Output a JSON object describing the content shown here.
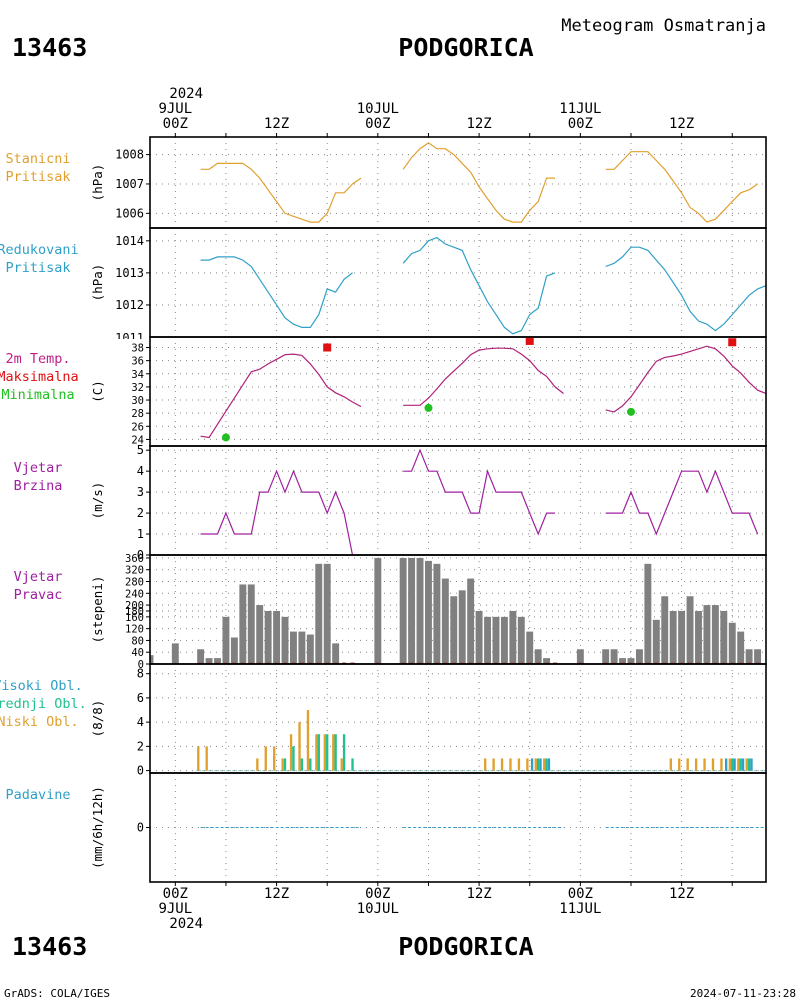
{
  "header": {
    "station_id": "13463",
    "station_name": "PODGORICA",
    "product": "Meteogram Osmatranja",
    "footer_left": "GrADS: COLA/IGES",
    "footer_right": "2024-07-11-23:28"
  },
  "time_axis": {
    "year": "2024",
    "top_labels": [
      {
        "t": 0,
        "lines": [
          "2024",
          "9JUL",
          "00Z"
        ]
      },
      {
        "t": 12,
        "lines": [
          "12Z"
        ]
      },
      {
        "t": 24,
        "lines": [
          "10JUL",
          "00Z"
        ]
      },
      {
        "t": 36,
        "lines": [
          "12Z"
        ]
      },
      {
        "t": 48,
        "lines": [
          "11JUL",
          "00Z"
        ]
      },
      {
        "t": 60,
        "lines": [
          "12Z"
        ]
      }
    ],
    "bottom_labels": [
      {
        "t": 0,
        "lines": [
          "00Z",
          "9JUL",
          "2024"
        ]
      },
      {
        "t": 12,
        "lines": [
          "12Z"
        ]
      },
      {
        "t": 24,
        "lines": [
          "00Z",
          "10JUL"
        ]
      },
      {
        "t": 36,
        "lines": [
          "12Z"
        ]
      },
      {
        "t": 48,
        "lines": [
          "00Z",
          "11JUL"
        ]
      },
      {
        "t": 60,
        "lines": [
          "12Z"
        ]
      }
    ],
    "range_hours": [
      -3,
      70
    ]
  },
  "chart_data": [
    {
      "type": "line",
      "panel": "stanicni-pritisak",
      "label_lines": [
        "Stanicni",
        "Pritisak"
      ],
      "label_color": "#e0a030",
      "line_color": "#e0a030",
      "ylabel": "(hPa)",
      "ylim": [
        1005.5,
        1008.6
      ],
      "yticks": [
        1006,
        1007,
        1008
      ],
      "segments": [
        {
          "x": [
            3,
            4,
            5,
            6,
            7,
            8,
            9,
            10,
            11,
            12,
            13,
            14,
            15,
            16,
            17,
            18,
            19,
            20,
            21,
            22
          ],
          "y": [
            1007.5,
            1007.5,
            1007.7,
            1007.7,
            1007.7,
            1007.7,
            1007.5,
            1007.2,
            1006.8,
            1006.4,
            1006.0,
            1005.9,
            1005.8,
            1005.7,
            1005.7,
            1006.0,
            1006.7,
            1006.7,
            1007.0,
            1007.2
          ]
        },
        {
          "x": [
            27,
            28,
            29,
            30,
            31,
            32,
            33,
            34,
            35,
            36,
            37,
            38,
            39,
            40,
            41,
            42,
            43,
            44,
            45,
            46
          ],
          "y": [
            1007.5,
            1007.9,
            1008.2,
            1008.4,
            1008.2,
            1008.2,
            1008.0,
            1007.7,
            1007.4,
            1006.9,
            1006.5,
            1006.1,
            1005.8,
            1005.7,
            1005.7,
            1006.1,
            1006.4,
            1007.2,
            1007.2,
            null
          ]
        },
        {
          "x": [
            51,
            52,
            53,
            54,
            55,
            56,
            57,
            58,
            59,
            60,
            61,
            62,
            63,
            64,
            65,
            66,
            67,
            68,
            69,
            70
          ],
          "y": [
            1007.5,
            1007.5,
            1007.8,
            1008.1,
            1008.1,
            1008.1,
            1007.8,
            1007.5,
            1007.1,
            1006.7,
            1006.2,
            1006.0,
            1005.7,
            1005.8,
            1006.1,
            1006.4,
            1006.7,
            1006.8,
            1007.0,
            null
          ]
        }
      ]
    },
    {
      "type": "line",
      "panel": "redukovani-pritisak",
      "label_lines": [
        "Redukovani",
        "Pritisak"
      ],
      "label_color": "#30a0c8",
      "line_color": "#30a0c8",
      "ylabel": "(hPa)",
      "ylim": [
        1011.0,
        1014.4
      ],
      "yticks": [
        1012,
        1013,
        1014
      ],
      "yticks_clipped": [
        1011
      ],
      "segments": [
        {
          "x": [
            3,
            4,
            5,
            6,
            7,
            8,
            9,
            10,
            11,
            12,
            13,
            14,
            15,
            16,
            17,
            18,
            19,
            20,
            21,
            22
          ],
          "y": [
            1013.4,
            1013.4,
            1013.5,
            1013.5,
            1013.5,
            1013.4,
            1013.2,
            1012.8,
            1012.4,
            1012.0,
            1011.6,
            1011.4,
            1011.3,
            1011.3,
            1011.7,
            1012.5,
            1012.4,
            1012.8,
            1013.0,
            null
          ]
        },
        {
          "x": [
            27,
            28,
            29,
            30,
            31,
            32,
            33,
            34,
            35,
            36,
            37,
            38,
            39,
            40,
            41,
            42,
            43,
            44,
            45,
            46
          ],
          "y": [
            1013.3,
            1013.6,
            1013.7,
            1014.0,
            1014.1,
            1013.9,
            1013.8,
            1013.7,
            1013.1,
            1012.6,
            1012.1,
            1011.7,
            1011.3,
            1011.1,
            1011.2,
            1011.7,
            1011.9,
            1012.9,
            1013.0,
            null
          ]
        },
        {
          "x": [
            51,
            52,
            53,
            54,
            55,
            56,
            57,
            58,
            59,
            60,
            61,
            62,
            63,
            64,
            65,
            66,
            67,
            68,
            69,
            70
          ],
          "y": [
            1013.2,
            1013.3,
            1013.5,
            1013.8,
            1013.8,
            1013.7,
            1013.4,
            1013.1,
            1012.7,
            1012.3,
            1011.8,
            1011.5,
            1011.4,
            1011.2,
            1011.4,
            1011.7,
            1012.0,
            1012.3,
            1012.5,
            1012.6
          ]
        }
      ]
    },
    {
      "type": "line",
      "panel": "temperatura",
      "label_lines": [
        "2m Temp.",
        "Maksimalna",
        "Minimalna"
      ],
      "label_colors": [
        "#c0208a",
        "#e01010",
        "#20c020"
      ],
      "line_color": "#b0207a",
      "ylabel": "(C)",
      "ylim": [
        23.0,
        39.6
      ],
      "yticks": [
        24,
        26,
        28,
        30,
        32,
        34,
        36,
        38
      ],
      "segments": [
        {
          "x": [
            3,
            4,
            5,
            6,
            7,
            8,
            9,
            10,
            11,
            12,
            13,
            14,
            15,
            16,
            17,
            18,
            19,
            20,
            21,
            22
          ],
          "y": [
            24.5,
            24.3,
            26.3,
            28.3,
            30.3,
            32.3,
            34.3,
            34.7,
            35.5,
            36.2,
            36.9,
            37.0,
            36.8,
            35.5,
            33.9,
            32.0,
            31.1,
            30.5,
            29.7,
            29.0
          ]
        },
        {
          "x": [
            27,
            28,
            29,
            30,
            31,
            32,
            33,
            34,
            35,
            36,
            37,
            38,
            39,
            40,
            41,
            42,
            43,
            44,
            45,
            46
          ],
          "y": [
            29.2,
            29.2,
            29.2,
            30.3,
            31.7,
            33.2,
            34.4,
            35.6,
            36.9,
            37.6,
            37.8,
            37.9,
            37.9,
            37.8,
            37.0,
            36.0,
            34.5,
            33.6,
            32.0,
            31.0
          ]
        },
        {
          "x": [
            51,
            52,
            53,
            54,
            55,
            56,
            57,
            58,
            59,
            60,
            61,
            62,
            63,
            64,
            65,
            66,
            67,
            68,
            69,
            70
          ],
          "y": [
            28.5,
            28.2,
            29.1,
            30.5,
            32.3,
            34.2,
            35.9,
            36.5,
            36.7,
            37.0,
            37.4,
            37.8,
            38.2,
            37.8,
            36.7,
            35.2,
            34.1,
            32.7,
            31.5,
            31.0
          ]
        }
      ],
      "max_points": [
        {
          "x": 18,
          "y": 38.0
        },
        {
          "x": 42,
          "y": 39.0
        },
        {
          "x": 66,
          "y": 38.8
        }
      ],
      "min_points": [
        {
          "x": 6,
          "y": 24.3
        },
        {
          "x": 30,
          "y": 28.8
        },
        {
          "x": 54,
          "y": 28.2
        }
      ]
    },
    {
      "type": "line",
      "panel": "vjetar-brzina",
      "label_lines": [
        "Vjetar",
        "Brzina"
      ],
      "label_color": "#a020a0",
      "line_color": "#a020a0",
      "ylabel": "(m/s)",
      "ylim": [
        0,
        5.2
      ],
      "yticks": [
        0,
        1,
        2,
        3,
        4,
        5
      ],
      "segments": [
        {
          "x": [
            3,
            4,
            5,
            6,
            7,
            8,
            9,
            10,
            11,
            12,
            13,
            14,
            15,
            16,
            17,
            18,
            19,
            20,
            21,
            22
          ],
          "y": [
            1,
            1,
            1,
            2,
            1,
            1,
            1,
            3,
            3,
            4,
            3,
            4,
            3,
            3,
            3,
            2,
            3,
            2,
            0,
            null
          ]
        },
        {
          "x": [
            27,
            28,
            29,
            30,
            31,
            32,
            33,
            34,
            35,
            36,
            37,
            38,
            39,
            40,
            41,
            42,
            43,
            44,
            45,
            46
          ],
          "y": [
            4,
            4,
            5,
            4,
            4,
            3,
            3,
            3,
            2,
            2,
            4,
            3,
            3,
            3,
            3,
            2,
            1,
            2,
            2,
            null
          ]
        },
        {
          "x": [
            51,
            52,
            53,
            54,
            55,
            56,
            57,
            58,
            59,
            60,
            61,
            62,
            63,
            64,
            65,
            66,
            67,
            68,
            69,
            70
          ],
          "y": [
            2,
            2,
            2,
            3,
            2,
            2,
            1,
            2,
            3,
            4,
            4,
            4,
            3,
            4,
            3,
            2,
            2,
            2,
            1,
            null
          ]
        }
      ]
    },
    {
      "type": "bar",
      "panel": "vjetar-pravac",
      "label_lines": [
        "Vjetar",
        "Pravac"
      ],
      "label_color": "#a020a0",
      "bar_color": "#808080",
      "ylabel": "(stepeni)",
      "ylim": [
        0,
        370
      ],
      "yticks": [
        0,
        40,
        80,
        120,
        160,
        180,
        200,
        240,
        280,
        320,
        360
      ],
      "yticks_labels": [
        "0",
        "40",
        "80",
        "120",
        "160",
        "180",
        "200",
        "240",
        "280",
        "320",
        "360"
      ],
      "x": [
        -3,
        0,
        3,
        4,
        5,
        6,
        7,
        8,
        9,
        10,
        11,
        12,
        13,
        14,
        15,
        16,
        17,
        18,
        19,
        20,
        21,
        24,
        27,
        28,
        29,
        30,
        31,
        32,
        33,
        34,
        35,
        36,
        37,
        38,
        39,
        40,
        41,
        42,
        43,
        44,
        45,
        48,
        51,
        52,
        53,
        54,
        55,
        56,
        57,
        58,
        59,
        60,
        61,
        62,
        63,
        64,
        65,
        66,
        67,
        68,
        69
      ],
      "values": [
        30,
        70,
        50,
        20,
        20,
        160,
        90,
        270,
        270,
        200,
        180,
        180,
        160,
        110,
        110,
        100,
        340,
        340,
        70,
        0,
        0,
        360,
        360,
        360,
        360,
        350,
        340,
        290,
        230,
        250,
        290,
        180,
        160,
        160,
        160,
        180,
        160,
        110,
        50,
        20,
        0,
        50,
        50,
        50,
        20,
        20,
        50,
        340,
        150,
        230,
        180,
        180,
        230,
        180,
        200,
        200,
        180,
        140,
        110,
        50,
        50
      ],
      "calm_marks_color": "#c04040"
    },
    {
      "type": "bar",
      "panel": "oblacnost",
      "label_lines": [
        "Visoki Obl.",
        "Srednji Obl.",
        "Niski Obl."
      ],
      "label_colors": [
        "#30a0c8",
        "#20c090",
        "#e0a030"
      ],
      "ylabel": "(8/8)",
      "ylim": [
        -0.2,
        8.8
      ],
      "yticks": [
        0,
        2,
        4,
        6,
        8
      ],
      "series": [
        {
          "name": "Niski Obl.",
          "color": "#e0a030",
          "offset": -0.28,
          "x": [
            3,
            4,
            10,
            11,
            12,
            13,
            14,
            15,
            16,
            17,
            18,
            19,
            20,
            21,
            37,
            38,
            39,
            40,
            41,
            42,
            43,
            44,
            59,
            60,
            61,
            62,
            63,
            64,
            65,
            66,
            67,
            68
          ],
          "values": [
            2,
            2,
            1,
            2,
            2,
            1,
            3,
            4,
            5,
            3,
            3,
            3,
            1,
            0,
            1,
            1,
            1,
            1,
            1,
            1,
            1,
            1,
            1,
            1,
            1,
            1,
            1,
            1,
            1,
            1,
            1,
            1
          ]
        },
        {
          "name": "Srednji Obl.",
          "color": "#20c090",
          "offset": 0.0,
          "x": [
            13,
            14,
            15,
            16,
            17,
            18,
            19,
            20,
            21,
            43,
            44,
            66,
            67,
            68
          ],
          "values": [
            1,
            2,
            1,
            1,
            3,
            3,
            3,
            3,
            1,
            1,
            1,
            1,
            1,
            1
          ]
        },
        {
          "name": "Visoki Obl.",
          "color": "#30a0c8",
          "offset": 0.28,
          "x": [
            42,
            43,
            44,
            65,
            66,
            67,
            68
          ],
          "values": [
            1,
            1,
            1,
            1,
            1,
            1,
            1
          ]
        }
      ]
    },
    {
      "type": "bar",
      "panel": "padavine",
      "label_lines": [
        "Padavine"
      ],
      "label_color": "#30a0c8",
      "line_color": "#30a0c8",
      "ylabel": "(mm/6h/12h)",
      "ylim": [
        -5,
        5
      ],
      "yticks": [
        0
      ],
      "segments": [
        {
          "x": [
            3,
            22
          ],
          "y": [
            0,
            0
          ]
        },
        {
          "x": [
            27,
            46
          ],
          "y": [
            0,
            0
          ]
        },
        {
          "x": [
            51,
            70
          ],
          "y": [
            0,
            0
          ]
        }
      ]
    }
  ]
}
